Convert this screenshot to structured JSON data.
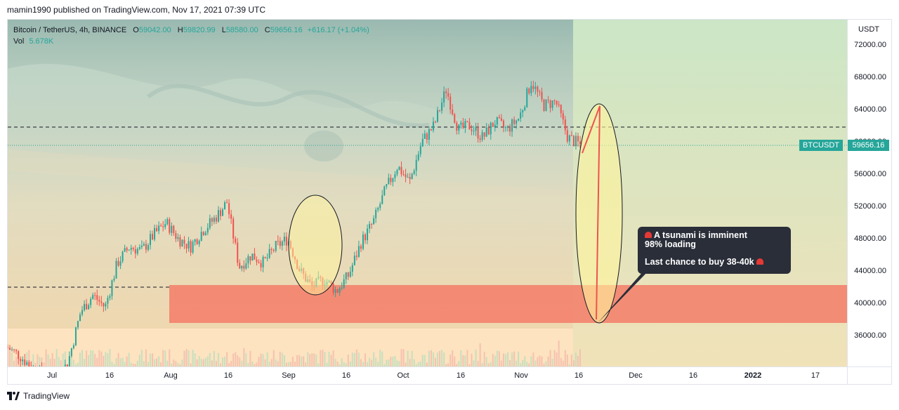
{
  "header": {
    "text": "mamin1990 published on TradingView.com, Nov 17, 2021 07:39 UTC"
  },
  "legend": {
    "symbol": "Bitcoin / TetherUS, 4h, BINANCE",
    "open_label": "O",
    "open": "59042.00",
    "high_label": "H",
    "high": "59820.99",
    "low_label": "L",
    "low": "58580.00",
    "close_label": "C",
    "close": "59656.16",
    "change": "+616.17 (+1.04%)",
    "vol_label": "Vol",
    "vol": "5.678K"
  },
  "price_axis": {
    "currency": "USDT",
    "ticks": [
      "72000.00",
      "68000.00",
      "64000.00",
      "60000.00",
      "56000.00",
      "52000.00",
      "48000.00",
      "44000.00",
      "40000.00",
      "36000.00"
    ]
  },
  "time_axis": {
    "ticks": [
      {
        "label": "Jul",
        "bold": false
      },
      {
        "label": "16",
        "bold": false
      },
      {
        "label": "Aug",
        "bold": false
      },
      {
        "label": "16",
        "bold": false
      },
      {
        "label": "Sep",
        "bold": false
      },
      {
        "label": "16",
        "bold": false
      },
      {
        "label": "Oct",
        "bold": false
      },
      {
        "label": "16",
        "bold": false
      },
      {
        "label": "Nov",
        "bold": false
      },
      {
        "label": "16",
        "bold": false
      },
      {
        "label": "Dec",
        "bold": false
      },
      {
        "label": "16",
        "bold": false
      },
      {
        "label": "2022",
        "bold": true
      },
      {
        "label": "17",
        "bold": false
      }
    ]
  },
  "price_tag": {
    "symbol": "BTCUSDT",
    "price": "59656.16"
  },
  "callout": {
    "line1": "A tsunami is imminent",
    "line2": "98% loading",
    "line3": "Last chance to buy 38-40k"
  },
  "colors": {
    "up": "#26a69a",
    "down": "#ef5350",
    "zone": "#f47d68",
    "ellipse_fill": "#fff59d",
    "bg_right": "#cfe8c4",
    "bg_bottom": "#fde3bf",
    "callout_bg": "#2a2e39"
  },
  "footer": {
    "brand": "TradingView"
  },
  "chart_data": {
    "type": "candlestick",
    "title": "Bitcoin / TetherUS, 4h, BINANCE",
    "y_unit": "USDT",
    "ylim": [
      34000,
      74000
    ],
    "x": [
      "Jul",
      "16",
      "Aug",
      "16",
      "Sep",
      "16",
      "Oct",
      "16",
      "Nov",
      "16",
      "Dec",
      "16",
      "2022",
      "17"
    ],
    "path_close": [
      34500,
      33500,
      32000,
      31000,
      30000,
      33000,
      39000,
      41000,
      39500,
      45000,
      47000,
      46500,
      48500,
      50000,
      48000,
      47000,
      49000,
      50500,
      52500,
      44500,
      46000,
      45000,
      47000,
      48000,
      44000,
      42000,
      43000,
      41500,
      43500,
      47500,
      50000,
      54000,
      57000,
      55000,
      60000,
      62000,
      66500,
      61500,
      62000,
      60500,
      62500,
      61500,
      63000,
      67500,
      64500,
      65000,
      60500,
      59656
    ],
    "support_zone": [
      38000,
      42500
    ],
    "horizontal_lines": [
      62200,
      42300
    ],
    "current_price": 59656.16
  }
}
